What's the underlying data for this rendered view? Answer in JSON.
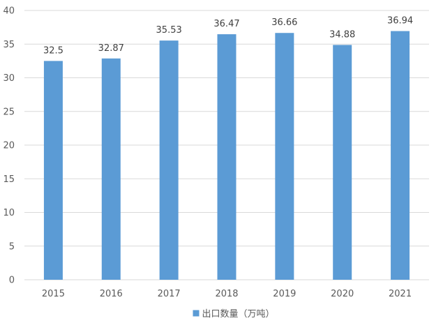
{
  "chart_data": {
    "type": "bar",
    "categories": [
      "2015",
      "2016",
      "2017",
      "2018",
      "2019",
      "2020",
      "2021"
    ],
    "series": [
      {
        "name": "出口数量（万吨）",
        "values": [
          32.5,
          32.87,
          35.53,
          36.47,
          36.66,
          34.88,
          36.94
        ],
        "color": "#5b9bd5"
      }
    ],
    "data_labels": [
      "32.5",
      "32.87",
      "35.53",
      "36.47",
      "36.66",
      "34.88",
      "36.94"
    ],
    "y_ticks": [
      "0",
      "5",
      "10",
      "15",
      "20",
      "25",
      "30",
      "35",
      "40"
    ],
    "ylim": [
      0,
      40
    ],
    "ytick_step": 5,
    "grid": true,
    "grid_color": "#d9d9d9",
    "legend_position": "bottom-center",
    "title": "",
    "xlabel": "",
    "ylabel": ""
  }
}
